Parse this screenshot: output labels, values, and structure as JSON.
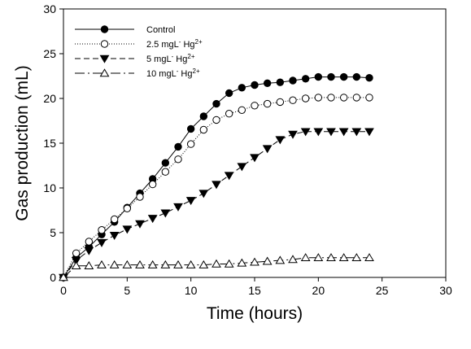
{
  "chart_data": {
    "type": "line",
    "xlabel": "Time (hours)",
    "ylabel": "Gas production (mL)",
    "xlim": [
      0,
      30
    ],
    "ylim": [
      0,
      30
    ],
    "xticks": [
      "0",
      "5",
      "10",
      "15",
      "20",
      "25",
      "30"
    ],
    "yticks": [
      "0",
      "5",
      "10",
      "15",
      "20",
      "25",
      "30"
    ],
    "grid": false,
    "legend_position": "top-left",
    "x": [
      0,
      1,
      2,
      3,
      4,
      5,
      6,
      7,
      8,
      9,
      10,
      11,
      12,
      13,
      14,
      15,
      16,
      17,
      18,
      19,
      20,
      21,
      22,
      23,
      24
    ],
    "series": [
      {
        "name": "Control",
        "legend": {
          "main": "Control",
          "sup": ""
        },
        "marker": "circle-filled",
        "dash": "",
        "values": [
          0,
          2.2,
          3.4,
          4.8,
          6.2,
          7.8,
          9.4,
          11.0,
          12.8,
          14.6,
          16.6,
          18.0,
          19.4,
          20.6,
          21.2,
          21.5,
          21.7,
          21.8,
          22.0,
          22.2,
          22.4,
          22.4,
          22.4,
          22.4,
          22.3
        ]
      },
      {
        "name": "2.5 mgL- Hg2+",
        "legend": {
          "main": "2.5 mgL",
          "minus": "-",
          "mid": " Hg",
          "sup": "2+"
        },
        "marker": "circle-open",
        "dash": "1,2",
        "values": [
          0,
          2.7,
          4.0,
          5.3,
          6.5,
          7.7,
          9.0,
          10.4,
          11.8,
          13.2,
          14.9,
          16.5,
          17.6,
          18.3,
          18.7,
          19.2,
          19.4,
          19.6,
          19.8,
          20.0,
          20.1,
          20.1,
          20.1,
          20.1,
          20.1
        ]
      },
      {
        "name": "5 mgL- Hg2+",
        "legend": {
          "main": "5 mgL",
          "minus": "-",
          "mid": " Hg",
          "sup": "2+"
        },
        "marker": "triangle-down-filled",
        "dash": "7,4",
        "values": [
          0,
          1.9,
          3.0,
          3.9,
          4.7,
          5.4,
          6.0,
          6.6,
          7.2,
          7.9,
          8.6,
          9.4,
          10.4,
          11.4,
          12.4,
          13.4,
          14.4,
          15.4,
          16.0,
          16.3,
          16.3,
          16.3,
          16.3,
          16.3,
          16.3
        ]
      },
      {
        "name": "10 mgL- Hg2+",
        "legend": {
          "main": "10 mgL",
          "minus": "-",
          "mid": " Hg",
          "sup": "2+"
        },
        "marker": "triangle-up-open",
        "dash": "12,4,2,4",
        "values": [
          0,
          1.3,
          1.3,
          1.4,
          1.4,
          1.4,
          1.4,
          1.4,
          1.4,
          1.4,
          1.4,
          1.4,
          1.5,
          1.5,
          1.6,
          1.7,
          1.8,
          1.9,
          2.0,
          2.2,
          2.2,
          2.2,
          2.2,
          2.2,
          2.2
        ]
      }
    ]
  }
}
